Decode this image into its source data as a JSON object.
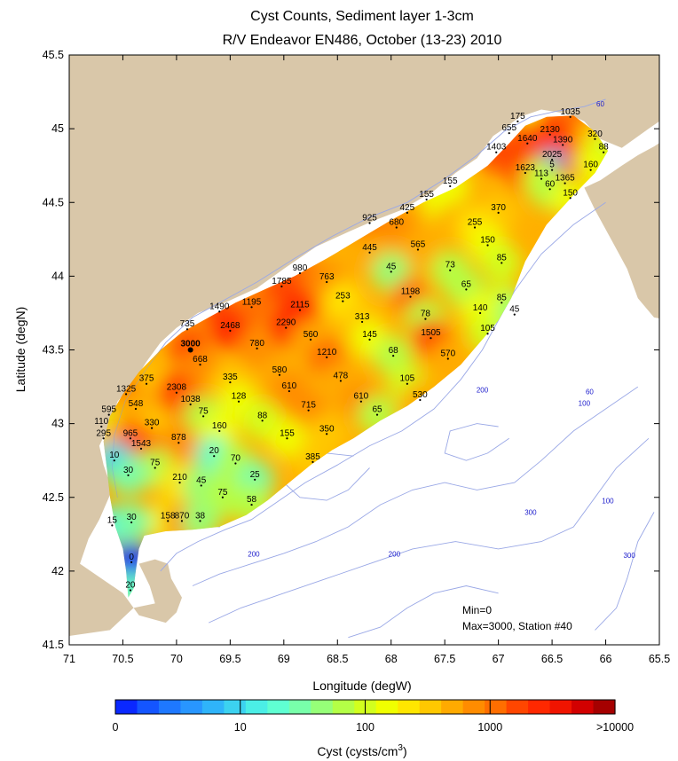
{
  "chart_data": {
    "type": "heatmap",
    "title": "Cyst Counts, Sediment layer 1-3cm",
    "subtitle": "R/V Endeavor EN486, October (13-23) 2010",
    "xlabel": "Longitude (degW)",
    "ylabel": "Latitude (degN)",
    "xlim": [
      71,
      65.5
    ],
    "ylim": [
      41.5,
      45.5
    ],
    "xticks": [
      "71",
      "70.5",
      "70",
      "69.5",
      "69",
      "68.5",
      "68",
      "67.5",
      "67",
      "66.5",
      "66",
      "65.5"
    ],
    "yticks": [
      "41.5",
      "42",
      "42.5",
      "43",
      "43.5",
      "44",
      "44.5",
      "45",
      "45.5"
    ],
    "annotation_min": "Min=0",
    "annotation_max": "Max=3000, Station #40",
    "colorbar": {
      "label_prefix": "Cyst (cysts/cm",
      "label_exp": "3",
      "label_suffix": ")",
      "scale": "log",
      "tick_labels": [
        "0",
        "10",
        "100",
        "1000",
        ">10000"
      ],
      "colors": [
        "#0a28ff",
        "#1455ff",
        "#1e78ff",
        "#2896ff",
        "#2fb4fa",
        "#3cd2f0",
        "#4beee6",
        "#5fffd2",
        "#78ffaa",
        "#96ff78",
        "#b4ff46",
        "#d2ff1e",
        "#f0ff00",
        "#ffe600",
        "#ffc800",
        "#ffaa00",
        "#ff8c00",
        "#ff6e00",
        "#ff4600",
        "#ff2800",
        "#f01400",
        "#d20000",
        "#a50000"
      ]
    },
    "contour_labels": [
      {
        "text": "60",
        "lon": 66.05,
        "lat": 45.15
      },
      {
        "text": "60",
        "lon": 66.15,
        "lat": 43.2
      },
      {
        "text": "100",
        "lon": 66.2,
        "lat": 43.12
      },
      {
        "text": "200",
        "lon": 67.15,
        "lat": 43.21
      },
      {
        "text": "200",
        "lon": 69.28,
        "lat": 42.1
      },
      {
        "text": "200",
        "lon": 67.97,
        "lat": 42.1
      },
      {
        "text": "300",
        "lon": 66.7,
        "lat": 42.38
      },
      {
        "text": "100",
        "lon": 65.98,
        "lat": 42.46
      },
      {
        "text": "300",
        "lon": 65.78,
        "lat": 42.09
      }
    ],
    "stations": [
      {
        "label": "175",
        "lon": 66.82,
        "lat": 45.05
      },
      {
        "label": "1035",
        "lon": 66.33,
        "lat": 45.08
      },
      {
        "label": "655",
        "lon": 66.9,
        "lat": 44.97
      },
      {
        "label": "2130",
        "lon": 66.52,
        "lat": 44.96
      },
      {
        "label": "1640",
        "lon": 66.73,
        "lat": 44.9
      },
      {
        "label": "1390",
        "lon": 66.4,
        "lat": 44.89
      },
      {
        "label": "320",
        "lon": 66.1,
        "lat": 44.93
      },
      {
        "label": "1403",
        "lon": 67.02,
        "lat": 44.84
      },
      {
        "label": "88",
        "lon": 66.02,
        "lat": 44.84
      },
      {
        "label": "2025",
        "lon": 66.5,
        "lat": 44.79
      },
      {
        "label": "160",
        "lon": 66.14,
        "lat": 44.72
      },
      {
        "label": "1623",
        "lon": 66.75,
        "lat": 44.7
      },
      {
        "label": "5",
        "lon": 66.5,
        "lat": 44.72
      },
      {
        "label": "113",
        "lon": 66.6,
        "lat": 44.66
      },
      {
        "label": "1365",
        "lon": 66.38,
        "lat": 44.63
      },
      {
        "label": "60",
        "lon": 66.52,
        "lat": 44.59
      },
      {
        "label": "150",
        "lon": 66.33,
        "lat": 44.53
      },
      {
        "label": "155",
        "lon": 67.45,
        "lat": 44.61
      },
      {
        "label": "155",
        "lon": 67.67,
        "lat": 44.52
      },
      {
        "label": "370",
        "lon": 67.0,
        "lat": 44.43
      },
      {
        "label": "925",
        "lon": 68.2,
        "lat": 44.36
      },
      {
        "label": "425",
        "lon": 67.85,
        "lat": 44.43
      },
      {
        "label": "680",
        "lon": 67.95,
        "lat": 44.33
      },
      {
        "label": "255",
        "lon": 67.22,
        "lat": 44.33
      },
      {
        "label": "150",
        "lon": 67.1,
        "lat": 44.21
      },
      {
        "label": "445",
        "lon": 68.2,
        "lat": 44.16
      },
      {
        "label": "565",
        "lon": 67.75,
        "lat": 44.18
      },
      {
        "label": "85",
        "lon": 66.97,
        "lat": 44.09
      },
      {
        "label": "980",
        "lon": 68.85,
        "lat": 44.02
      },
      {
        "label": "45",
        "lon": 68.0,
        "lat": 44.03
      },
      {
        "label": "73",
        "lon": 67.45,
        "lat": 44.04
      },
      {
        "label": "763",
        "lon": 68.6,
        "lat": 43.96
      },
      {
        "label": "1785",
        "lon": 69.02,
        "lat": 43.93
      },
      {
        "label": "65",
        "lon": 67.3,
        "lat": 43.91
      },
      {
        "label": "1198",
        "lon": 67.82,
        "lat": 43.86
      },
      {
        "label": "253",
        "lon": 68.45,
        "lat": 43.83
      },
      {
        "label": "85",
        "lon": 66.97,
        "lat": 43.82
      },
      {
        "label": "1490",
        "lon": 69.6,
        "lat": 43.76
      },
      {
        "label": "1195",
        "lon": 69.3,
        "lat": 43.79
      },
      {
        "label": "2115",
        "lon": 68.85,
        "lat": 43.77
      },
      {
        "label": "140",
        "lon": 67.17,
        "lat": 43.75
      },
      {
        "label": "45",
        "lon": 66.85,
        "lat": 43.74
      },
      {
        "label": "313",
        "lon": 68.27,
        "lat": 43.69
      },
      {
        "label": "78",
        "lon": 67.68,
        "lat": 43.71
      },
      {
        "label": "735",
        "lon": 69.9,
        "lat": 43.64
      },
      {
        "label": "2468",
        "lon": 69.5,
        "lat": 43.63
      },
      {
        "label": "2290",
        "lon": 68.98,
        "lat": 43.65
      },
      {
        "label": "105",
        "lon": 67.1,
        "lat": 43.61
      },
      {
        "label": "560",
        "lon": 68.75,
        "lat": 43.57
      },
      {
        "label": "145",
        "lon": 68.2,
        "lat": 43.57
      },
      {
        "label": "1505",
        "lon": 67.63,
        "lat": 43.58
      },
      {
        "label": "3000",
        "lon": 69.87,
        "lat": 43.5,
        "big": true
      },
      {
        "label": "780",
        "lon": 69.25,
        "lat": 43.51
      },
      {
        "label": "1210",
        "lon": 68.6,
        "lat": 43.45
      },
      {
        "label": "570",
        "lon": 67.47,
        "lat": 43.44
      },
      {
        "label": "68",
        "lon": 67.98,
        "lat": 43.46
      },
      {
        "label": "668",
        "lon": 69.78,
        "lat": 43.4
      },
      {
        "label": "580",
        "lon": 69.04,
        "lat": 43.33
      },
      {
        "label": "478",
        "lon": 68.47,
        "lat": 43.29
      },
      {
        "label": "375",
        "lon": 70.28,
        "lat": 43.27
      },
      {
        "label": "335",
        "lon": 69.5,
        "lat": 43.28
      },
      {
        "label": "105",
        "lon": 67.85,
        "lat": 43.27
      },
      {
        "label": "1325",
        "lon": 70.47,
        "lat": 43.2
      },
      {
        "label": "2308",
        "lon": 70.0,
        "lat": 43.21
      },
      {
        "label": "610",
        "lon": 68.95,
        "lat": 43.22
      },
      {
        "label": "128",
        "lon": 69.42,
        "lat": 43.15
      },
      {
        "label": "610",
        "lon": 68.28,
        "lat": 43.15
      },
      {
        "label": "530",
        "lon": 67.73,
        "lat": 43.16
      },
      {
        "label": "1038",
        "lon": 69.87,
        "lat": 43.13
      },
      {
        "label": "548",
        "lon": 70.38,
        "lat": 43.1
      },
      {
        "label": "595",
        "lon": 70.63,
        "lat": 43.06
      },
      {
        "label": "715",
        "lon": 68.77,
        "lat": 43.09
      },
      {
        "label": "75",
        "lon": 69.75,
        "lat": 43.05
      },
      {
        "label": "65",
        "lon": 68.13,
        "lat": 43.06
      },
      {
        "label": "88",
        "lon": 69.2,
        "lat": 43.02
      },
      {
        "label": "110",
        "lon": 70.7,
        "lat": 42.98
      },
      {
        "label": "330",
        "lon": 70.23,
        "lat": 42.97
      },
      {
        "label": "160",
        "lon": 69.6,
        "lat": 42.95
      },
      {
        "label": "350",
        "lon": 68.6,
        "lat": 42.93
      },
      {
        "label": "295",
        "lon": 70.68,
        "lat": 42.9
      },
      {
        "label": "965",
        "lon": 70.43,
        "lat": 42.9
      },
      {
        "label": "155",
        "lon": 68.97,
        "lat": 42.9
      },
      {
        "label": "878",
        "lon": 69.98,
        "lat": 42.87
      },
      {
        "label": "1543",
        "lon": 70.33,
        "lat": 42.83
      },
      {
        "label": "20",
        "lon": 69.65,
        "lat": 42.78
      },
      {
        "label": "10",
        "lon": 70.58,
        "lat": 42.75
      },
      {
        "label": "385",
        "lon": 68.73,
        "lat": 42.74
      },
      {
        "label": "70",
        "lon": 69.45,
        "lat": 42.73
      },
      {
        "label": "75",
        "lon": 70.2,
        "lat": 42.7
      },
      {
        "label": "30",
        "lon": 70.45,
        "lat": 42.65
      },
      {
        "label": "25",
        "lon": 69.27,
        "lat": 42.62
      },
      {
        "label": "210",
        "lon": 69.97,
        "lat": 42.6
      },
      {
        "label": "45",
        "lon": 69.77,
        "lat": 42.58
      },
      {
        "label": "75",
        "lon": 69.57,
        "lat": 42.5
      },
      {
        "label": "58",
        "lon": 69.3,
        "lat": 42.45
      },
      {
        "label": "158",
        "lon": 70.08,
        "lat": 42.34
      },
      {
        "label": "870",
        "lon": 69.95,
        "lat": 42.34
      },
      {
        "label": "38",
        "lon": 69.78,
        "lat": 42.34
      },
      {
        "label": "15",
        "lon": 70.6,
        "lat": 42.31
      },
      {
        "label": "30",
        "lon": 70.42,
        "lat": 42.33
      },
      {
        "label": "0",
        "lon": 70.42,
        "lat": 42.06
      },
      {
        "label": "20",
        "lon": 70.43,
        "lat": 41.87
      }
    ]
  }
}
